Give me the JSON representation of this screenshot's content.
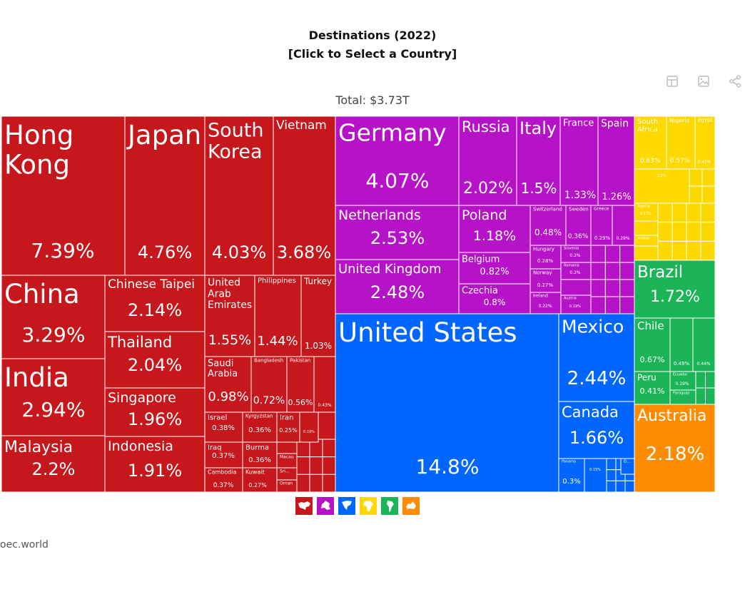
{
  "title_line1": "Destinations (2022)",
  "title_line2": "[Click to Select a Country]",
  "total": "Total: $3.73T",
  "source": "oec.world",
  "toolbar": [
    {
      "icon": "table-icon"
    },
    {
      "icon": "image-icon"
    },
    {
      "icon": "share-icon"
    }
  ],
  "legend": [
    {
      "region": "Asia",
      "color": "#c6171c",
      "icon": "asia-map-icon"
    },
    {
      "region": "Europe",
      "color": "#b612c7",
      "icon": "europe-map-icon"
    },
    {
      "region": "North America",
      "color": "#0066ff",
      "icon": "north-america-map-icon"
    },
    {
      "region": "Africa",
      "color": "#ffd800",
      "icon": "africa-map-icon"
    },
    {
      "region": "South America",
      "color": "#1bb557",
      "icon": "south-america-map-icon"
    },
    {
      "region": "Oceania",
      "color": "#ff8c00",
      "icon": "oceania-map-icon"
    }
  ],
  "chart_data": {
    "type": "treemap",
    "title": "Destinations (2022)",
    "subtitle": "[Click to Select a Country]",
    "total": "Total: $3.73T",
    "unit": "% of total exports",
    "items": [
      {
        "name": "United States",
        "value": 14.8,
        "label": "14.8%",
        "region": "North America"
      },
      {
        "name": "Hong Kong",
        "value": 7.39,
        "label": "7.39%",
        "region": "Asia"
      },
      {
        "name": "Japan",
        "value": 4.76,
        "label": "4.76%",
        "region": "Asia"
      },
      {
        "name": "Germany",
        "value": 4.07,
        "label": "4.07%",
        "region": "Europe"
      },
      {
        "name": "South Korea",
        "value": 4.03,
        "label": "4.03%",
        "region": "Asia"
      },
      {
        "name": "Vietnam",
        "value": 3.68,
        "label": "3.68%",
        "region": "Asia"
      },
      {
        "name": "China",
        "value": 3.29,
        "label": "3.29%",
        "region": "Asia"
      },
      {
        "name": "India",
        "value": 2.94,
        "label": "2.94%",
        "region": "Asia"
      },
      {
        "name": "Netherlands",
        "value": 2.53,
        "label": "2.53%",
        "region": "Europe"
      },
      {
        "name": "United Kingdom",
        "value": 2.48,
        "label": "2.48%",
        "region": "Europe"
      },
      {
        "name": "Mexico",
        "value": 2.44,
        "label": "2.44%",
        "region": "North America"
      },
      {
        "name": "Malaysia",
        "value": 2.2,
        "label": "2.2%",
        "region": "Asia"
      },
      {
        "name": "Australia",
        "value": 2.18,
        "label": "2.18%",
        "region": "Oceania"
      },
      {
        "name": "Chinese Taipei",
        "value": 2.14,
        "label": "2.14%",
        "region": "Asia"
      },
      {
        "name": "Thailand",
        "value": 2.04,
        "label": "2.04%",
        "region": "Asia"
      },
      {
        "name": "Russia",
        "value": 2.02,
        "label": "2.02%",
        "region": "Europe"
      },
      {
        "name": "Singapore",
        "value": 1.96,
        "label": "1.96%",
        "region": "Asia"
      },
      {
        "name": "Indonesia",
        "value": 1.91,
        "label": "1.91%",
        "region": "Asia"
      },
      {
        "name": "Brazil",
        "value": 1.72,
        "label": "1.72%",
        "region": "South America"
      },
      {
        "name": "Canada",
        "value": 1.66,
        "label": "1.66%",
        "region": "North America"
      },
      {
        "name": "United Arab Emirates",
        "value": 1.55,
        "label": "1.55%",
        "region": "Asia"
      },
      {
        "name": "Italy",
        "value": 1.5,
        "label": "1.5%",
        "region": "Europe"
      },
      {
        "name": "Philippines",
        "value": 1.44,
        "label": "1.44%",
        "region": "Asia"
      },
      {
        "name": "France",
        "value": 1.33,
        "label": "1.33%",
        "region": "Europe"
      },
      {
        "name": "Spain",
        "value": 1.26,
        "label": "1.26%",
        "region": "Europe"
      },
      {
        "name": "Poland",
        "value": 1.18,
        "label": "1.18%",
        "region": "Europe"
      },
      {
        "name": "Turkey",
        "value": 1.03,
        "label": "1.03%",
        "region": "Asia"
      },
      {
        "name": "Saudi Arabia",
        "value": 0.98,
        "label": "0.98%",
        "region": "Asia"
      },
      {
        "name": "Belgium",
        "value": 0.82,
        "label": "0.82%",
        "region": "Europe"
      },
      {
        "name": "Czechia",
        "value": 0.8,
        "label": "0.8%",
        "region": "Europe"
      },
      {
        "name": "Bangladesh",
        "value": 0.72,
        "label": "0.72%",
        "region": "Asia"
      },
      {
        "name": "Chile",
        "value": 0.67,
        "label": "0.67%",
        "region": "South America"
      },
      {
        "name": "South Africa",
        "value": 0.63,
        "label": "0.63%",
        "region": "Africa"
      },
      {
        "name": "Nigeria",
        "value": 0.57,
        "label": "0.57%",
        "region": "Africa"
      },
      {
        "name": "Pakistan",
        "value": 0.56,
        "label": "0.56%",
        "region": "Asia"
      },
      {
        "name": "Switzerland",
        "value": 0.48,
        "label": "0.48%",
        "region": "Europe"
      },
      {
        "name": "Egypt",
        "value": 0.45,
        "label": "0.45%",
        "region": "Africa"
      },
      {
        "name": "Peru",
        "value": 0.41,
        "label": "0.41%",
        "region": "South America"
      },
      {
        "name": "Israel",
        "value": 0.38,
        "label": "0.38%",
        "region": "Asia"
      },
      {
        "name": "Iraq",
        "value": 0.37,
        "label": "0.37%",
        "region": "Asia"
      },
      {
        "name": "Cambodia",
        "value": 0.37,
        "label": "0.37%",
        "region": "Asia"
      },
      {
        "name": "Kyrgyzstan",
        "value": 0.36,
        "label": "0.36%",
        "region": "Asia"
      },
      {
        "name": "Burma",
        "value": 0.36,
        "label": "0.36%",
        "region": "Asia"
      },
      {
        "name": "Sweden",
        "value": 0.36,
        "label": "0.36%",
        "region": "Europe"
      },
      {
        "name": "Panama",
        "value": 0.3,
        "label": "0.3%",
        "region": "North America"
      },
      {
        "name": "Greece",
        "value": 0.29,
        "label": "0.29%",
        "region": "Europe"
      },
      {
        "name": "Hungary",
        "value": 0.28,
        "label": "0.28%",
        "region": "Europe"
      },
      {
        "name": "Kuwait",
        "value": 0.27,
        "label": "0.27%",
        "region": "Asia"
      },
      {
        "name": "Norway",
        "value": 0.27,
        "label": "0.27%",
        "region": "Europe"
      },
      {
        "name": "Iran",
        "value": 0.25,
        "label": "0.25%",
        "region": "Asia"
      },
      {
        "name": "Ireland",
        "value": 0.22,
        "label": "0.22%",
        "region": "Europe"
      },
      {
        "name": "Slovenia",
        "value": 0.2,
        "label": "0.2%",
        "region": "Europe"
      },
      {
        "name": "Romania",
        "value": 0.2,
        "label": "0.2%",
        "region": "Europe"
      },
      {
        "name": "Austria",
        "value": 0.19,
        "label": "0.19%",
        "region": "Europe"
      },
      {
        "name": "Ecuador",
        "value": 0.19,
        "label": "0.19%",
        "region": "South America"
      },
      {
        "name": "Algeria",
        "value": 0.17,
        "label": "0.17%",
        "region": "Africa"
      },
      {
        "name": "Macau",
        "value": null,
        "label": "",
        "region": "Asia"
      },
      {
        "name": "Sri...",
        "value": null,
        "label": "",
        "region": "Asia"
      },
      {
        "name": "Oman",
        "value": null,
        "label": "",
        "region": "Asia"
      },
      {
        "name": "El...",
        "value": null,
        "label": "",
        "region": "North America"
      },
      {
        "name": "Paraguay",
        "value": null,
        "label": "",
        "region": "South America"
      },
      {
        "name": "Angola",
        "value": null,
        "label": "",
        "region": "Africa"
      }
    ],
    "unlabeled_values": [
      {
        "label": "0.15%",
        "region": "North America"
      },
      {
        "label": "0.19%",
        "region": "Asia"
      },
      {
        "label": "0.43%",
        "region": "Asia"
      },
      {
        "label": "0.29%",
        "region": "Europe"
      },
      {
        "label": "0.49%",
        "region": "South America"
      },
      {
        "label": "0.44%",
        "region": "South America"
      },
      {
        "label": "0.2%",
        "region": "Africa"
      }
    ]
  }
}
